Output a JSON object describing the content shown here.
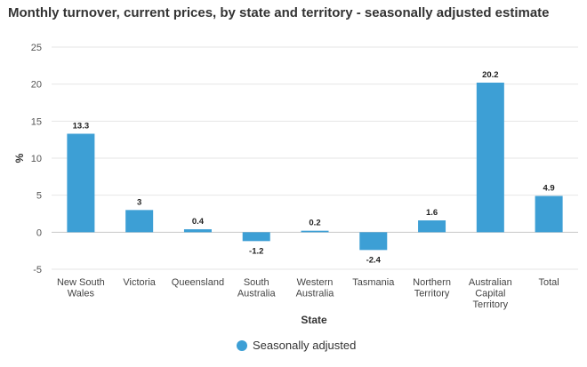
{
  "chart_data": {
    "type": "bar",
    "title": "Monthly turnover, current prices, by state and territory - seasonally adjusted estimate",
    "xlabel": "State",
    "ylabel": "%",
    "ylim": [
      -5,
      25
    ],
    "yticks": [
      -5,
      0,
      5,
      10,
      15,
      20,
      25
    ],
    "grid": true,
    "legend_position": "bottom",
    "categories": [
      [
        "New South",
        "Wales"
      ],
      [
        "Victoria"
      ],
      [
        "Queensland"
      ],
      [
        "South",
        "Australia"
      ],
      [
        "Western",
        "Australia"
      ],
      [
        "Tasmania"
      ],
      [
        "Northern",
        "Territory"
      ],
      [
        "Australian",
        "Capital",
        "Territory"
      ],
      [
        "Total"
      ]
    ],
    "series": [
      {
        "name": "Seasonally adjusted",
        "color": "#3d9fd5",
        "values": [
          13.3,
          3,
          0.4,
          -1.2,
          0.2,
          -2.4,
          1.6,
          20.2,
          4.9
        ]
      }
    ]
  }
}
